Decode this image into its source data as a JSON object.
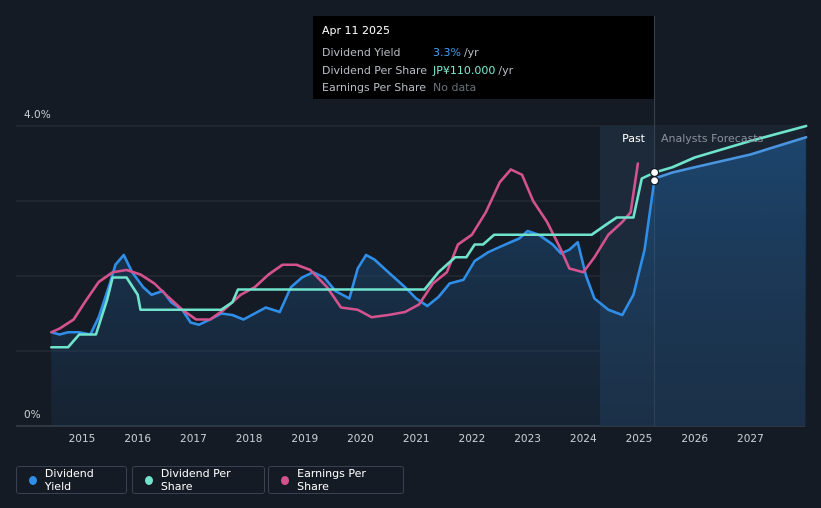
{
  "tooltip": {
    "date": "Apr 11 2025",
    "rows": [
      {
        "label": "Dividend Yield",
        "value": "3.3%",
        "unit": "/yr",
        "color": "#3b9cf0"
      },
      {
        "label": "Dividend Per Share",
        "value": "JP¥110.000",
        "unit": "/yr",
        "color": "#7de8cf"
      },
      {
        "label": "Earnings Per Share",
        "value": "No data",
        "unit": "",
        "color": "#6b7078"
      }
    ]
  },
  "regions": {
    "past": "Past",
    "forecast": "Analysts Forecasts"
  },
  "legend": [
    {
      "label": "Dividend Yield",
      "color": "#2f8ee8"
    },
    {
      "label": "Dividend Per Share",
      "color": "#6fe3cc"
    },
    {
      "label": "Earnings Per Share",
      "color": "#d4538e"
    }
  ],
  "chart_data": {
    "type": "line",
    "y_tick_labels": [
      "4.0%",
      "0%"
    ],
    "ylim": [
      0,
      4.0
    ],
    "xlim": [
      2014.5,
      2028.0
    ],
    "x_ticks": [
      2015,
      2016,
      2017,
      2018,
      2019,
      2020,
      2021,
      2022,
      2023,
      2024,
      2025,
      2026,
      2027
    ],
    "past_start": 2024.3,
    "tooltip_x": 2025.28,
    "series": [
      {
        "name": "Dividend Yield",
        "color": "#2f8ee8",
        "points": [
          [
            2014.45,
            1.25
          ],
          [
            2014.6,
            1.22
          ],
          [
            2014.75,
            1.25
          ],
          [
            2014.95,
            1.25
          ],
          [
            2015.15,
            1.22
          ],
          [
            2015.3,
            1.45
          ],
          [
            2015.5,
            1.9
          ],
          [
            2015.6,
            2.15
          ],
          [
            2015.75,
            2.28
          ],
          [
            2015.9,
            2.05
          ],
          [
            2016.1,
            1.85
          ],
          [
            2016.25,
            1.75
          ],
          [
            2016.45,
            1.8
          ],
          [
            2016.6,
            1.65
          ],
          [
            2016.8,
            1.55
          ],
          [
            2016.95,
            1.38
          ],
          [
            2017.1,
            1.35
          ],
          [
            2017.3,
            1.42
          ],
          [
            2017.5,
            1.5
          ],
          [
            2017.7,
            1.48
          ],
          [
            2017.9,
            1.42
          ],
          [
            2018.1,
            1.5
          ],
          [
            2018.3,
            1.58
          ],
          [
            2018.55,
            1.52
          ],
          [
            2018.75,
            1.85
          ],
          [
            2018.95,
            1.98
          ],
          [
            2019.15,
            2.05
          ],
          [
            2019.35,
            1.98
          ],
          [
            2019.55,
            1.8
          ],
          [
            2019.8,
            1.7
          ],
          [
            2019.95,
            2.1
          ],
          [
            2020.1,
            2.28
          ],
          [
            2020.25,
            2.22
          ],
          [
            2020.5,
            2.05
          ],
          [
            2020.8,
            1.85
          ],
          [
            2021.0,
            1.7
          ],
          [
            2021.2,
            1.6
          ],
          [
            2021.4,
            1.72
          ],
          [
            2021.6,
            1.9
          ],
          [
            2021.85,
            1.95
          ],
          [
            2022.05,
            2.2
          ],
          [
            2022.3,
            2.32
          ],
          [
            2022.6,
            2.42
          ],
          [
            2022.85,
            2.5
          ],
          [
            2023.0,
            2.6
          ],
          [
            2023.2,
            2.55
          ],
          [
            2023.45,
            2.42
          ],
          [
            2023.6,
            2.3
          ],
          [
            2023.75,
            2.35
          ],
          [
            2023.9,
            2.45
          ],
          [
            2024.05,
            2.0
          ],
          [
            2024.2,
            1.7
          ],
          [
            2024.45,
            1.55
          ],
          [
            2024.7,
            1.48
          ],
          [
            2024.9,
            1.75
          ],
          [
            2025.1,
            2.35
          ],
          [
            2025.28,
            3.3
          ]
        ]
      },
      {
        "name": "Dividend Per Share",
        "color": "#6fe3cc",
        "points": [
          [
            2014.45,
            1.05
          ],
          [
            2014.75,
            1.05
          ],
          [
            2014.95,
            1.22
          ],
          [
            2015.1,
            1.22
          ],
          [
            2015.25,
            1.22
          ],
          [
            2015.45,
            1.68
          ],
          [
            2015.55,
            1.98
          ],
          [
            2015.8,
            1.98
          ],
          [
            2016.0,
            1.75
          ],
          [
            2016.05,
            1.55
          ],
          [
            2016.15,
            1.55
          ],
          [
            2016.5,
            1.55
          ],
          [
            2016.8,
            1.55
          ],
          [
            2017.05,
            1.55
          ],
          [
            2017.3,
            1.55
          ],
          [
            2017.5,
            1.55
          ],
          [
            2017.7,
            1.65
          ],
          [
            2017.8,
            1.82
          ],
          [
            2018.2,
            1.82
          ],
          [
            2018.8,
            1.82
          ],
          [
            2019.5,
            1.82
          ],
          [
            2020.2,
            1.82
          ],
          [
            2020.8,
            1.82
          ],
          [
            2021.15,
            1.82
          ],
          [
            2021.4,
            2.05
          ],
          [
            2021.7,
            2.25
          ],
          [
            2021.9,
            2.25
          ],
          [
            2022.05,
            2.42
          ],
          [
            2022.2,
            2.42
          ],
          [
            2022.4,
            2.55
          ],
          [
            2022.75,
            2.55
          ],
          [
            2023.1,
            2.55
          ],
          [
            2023.6,
            2.55
          ],
          [
            2024.0,
            2.55
          ],
          [
            2024.15,
            2.55
          ],
          [
            2024.4,
            2.68
          ],
          [
            2024.6,
            2.78
          ],
          [
            2024.9,
            2.78
          ],
          [
            2025.05,
            3.3
          ],
          [
            2025.28,
            3.38
          ],
          [
            2025.6,
            3.45
          ],
          [
            2026.0,
            3.58
          ],
          [
            2027.0,
            3.8
          ],
          [
            2028.0,
            4.0
          ]
        ]
      },
      {
        "name": "Earnings Per Share",
        "color": "#d4538e",
        "points": [
          [
            2014.45,
            1.25
          ],
          [
            2014.6,
            1.3
          ],
          [
            2014.85,
            1.42
          ],
          [
            2015.05,
            1.65
          ],
          [
            2015.3,
            1.92
          ],
          [
            2015.55,
            2.05
          ],
          [
            2015.8,
            2.08
          ],
          [
            2016.05,
            2.02
          ],
          [
            2016.3,
            1.9
          ],
          [
            2016.55,
            1.72
          ],
          [
            2016.8,
            1.55
          ],
          [
            2017.05,
            1.42
          ],
          [
            2017.3,
            1.42
          ],
          [
            2017.55,
            1.55
          ],
          [
            2017.85,
            1.75
          ],
          [
            2018.1,
            1.85
          ],
          [
            2018.35,
            2.02
          ],
          [
            2018.6,
            2.15
          ],
          [
            2018.85,
            2.15
          ],
          [
            2019.1,
            2.08
          ],
          [
            2019.4,
            1.85
          ],
          [
            2019.65,
            1.58
          ],
          [
            2019.95,
            1.55
          ],
          [
            2020.2,
            1.45
          ],
          [
            2020.5,
            1.48
          ],
          [
            2020.8,
            1.52
          ],
          [
            2021.05,
            1.62
          ],
          [
            2021.3,
            1.9
          ],
          [
            2021.55,
            2.05
          ],
          [
            2021.75,
            2.42
          ],
          [
            2022.0,
            2.55
          ],
          [
            2022.25,
            2.85
          ],
          [
            2022.5,
            3.25
          ],
          [
            2022.7,
            3.42
          ],
          [
            2022.9,
            3.35
          ],
          [
            2023.1,
            3.0
          ],
          [
            2023.35,
            2.72
          ],
          [
            2023.6,
            2.35
          ],
          [
            2023.75,
            2.1
          ],
          [
            2024.0,
            2.05
          ],
          [
            2024.2,
            2.25
          ],
          [
            2024.45,
            2.55
          ],
          [
            2024.7,
            2.72
          ],
          [
            2024.85,
            2.85
          ],
          [
            2024.98,
            3.5
          ]
        ]
      },
      {
        "name": "Dividend Per Share (forecast lower band)",
        "color": "#4a95e0",
        "points": [
          [
            2025.28,
            3.3
          ],
          [
            2025.6,
            3.38
          ],
          [
            2026.0,
            3.45
          ],
          [
            2027.0,
            3.62
          ],
          [
            2028.0,
            3.85
          ]
        ]
      }
    ],
    "markers": [
      {
        "x": 2025.28,
        "y": 3.38
      },
      {
        "x": 2025.28,
        "y": 3.27
      }
    ]
  }
}
